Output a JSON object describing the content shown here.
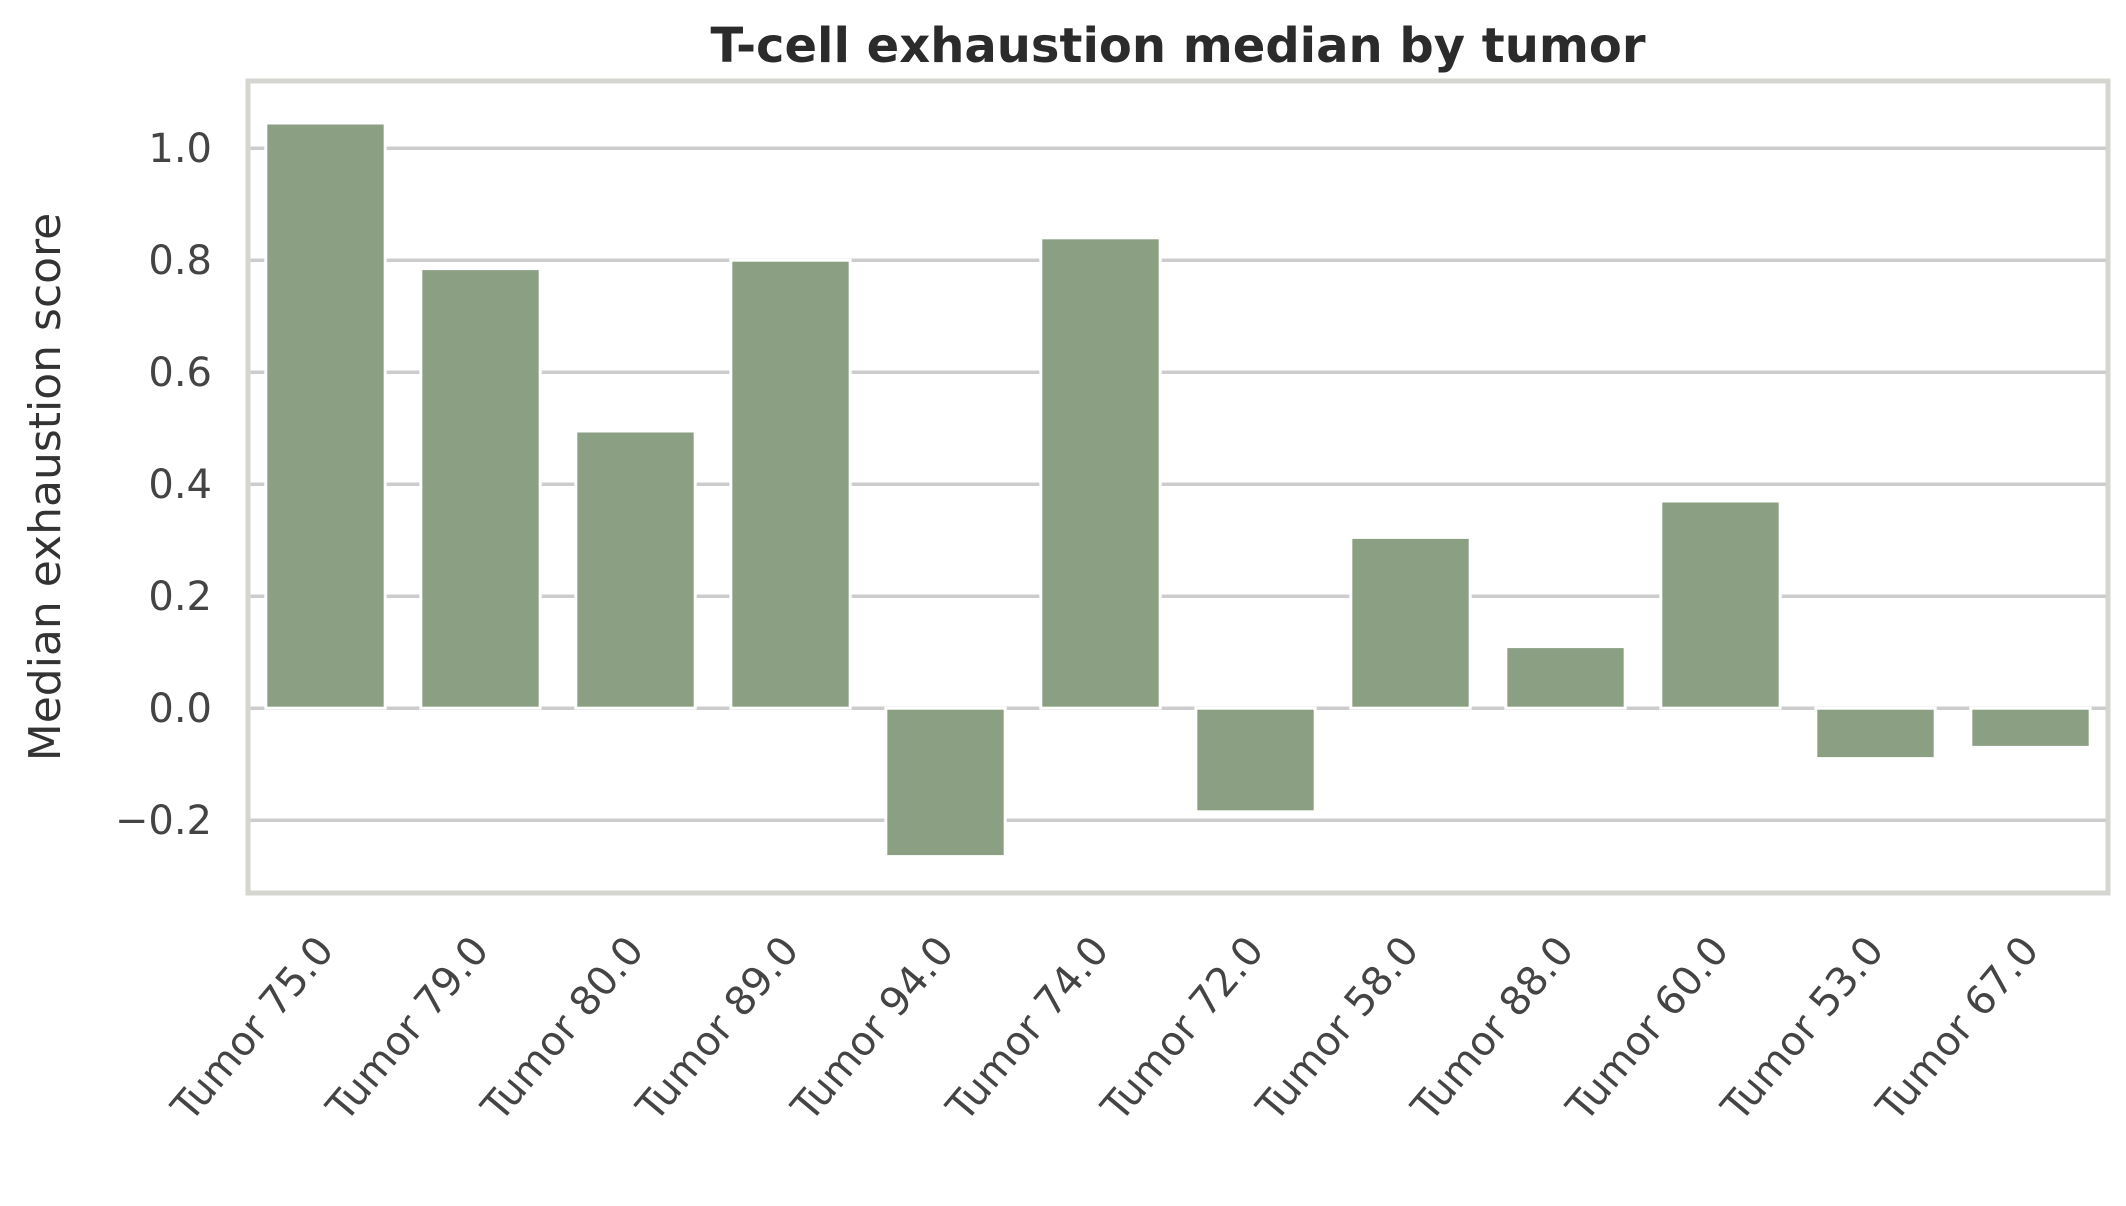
{
  "chart_data": {
    "type": "bar",
    "title": "T-cell exhaustion median by tumor",
    "xlabel": "",
    "ylabel": "Median exhaustion score",
    "categories": [
      "Tumor 75.0",
      "Tumor 79.0",
      "Tumor 80.0",
      "Tumor 89.0",
      "Tumor 94.0",
      "Tumor 74.0",
      "Tumor 72.0",
      "Tumor 58.0",
      "Tumor 88.0",
      "Tumor 60.0",
      "Tumor 53.0",
      "Tumor 67.0"
    ],
    "values": [
      1.045,
      0.785,
      0.495,
      0.8,
      -0.265,
      0.84,
      -0.185,
      0.305,
      0.11,
      0.37,
      -0.09,
      -0.07
    ],
    "ylim": [
      -0.33,
      1.12
    ],
    "yticks": [
      -0.2,
      0.0,
      0.2,
      0.4,
      0.6,
      0.8,
      1.0
    ],
    "ytick_labels": [
      "−0.2",
      "0.0",
      "0.2",
      "0.4",
      "0.6",
      "0.8",
      "1.0"
    ],
    "grid": true,
    "legend": "none",
    "colors": {
      "bar": "#8b9f83",
      "grid": "#cccccc",
      "frame": "#d6d6d0",
      "background": "#ffffff"
    }
  }
}
